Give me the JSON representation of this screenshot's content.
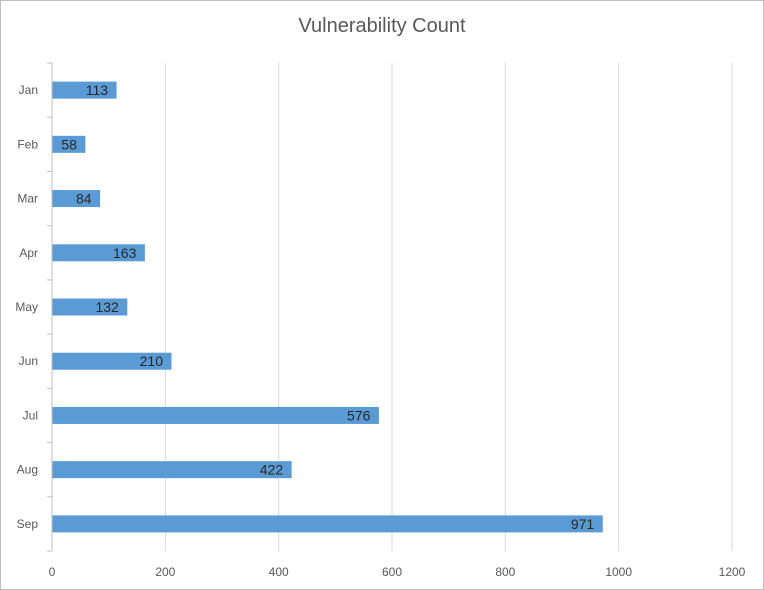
{
  "chart_data": {
    "type": "bar",
    "orientation": "horizontal",
    "title": "Vulnerability Count",
    "categories": [
      "Jan",
      "Feb",
      "Mar",
      "Apr",
      "May",
      "Jun",
      "Jul",
      "Aug",
      "Sep"
    ],
    "values": [
      113,
      58,
      84,
      163,
      132,
      210,
      576,
      422,
      971
    ],
    "xlim": [
      0,
      1200
    ],
    "xticks": [
      0,
      200,
      400,
      600,
      800,
      1000,
      1200
    ],
    "xlabel": "",
    "ylabel": "",
    "grid": "vertical",
    "legend": "none",
    "bar_color": "#5b9bd5"
  }
}
